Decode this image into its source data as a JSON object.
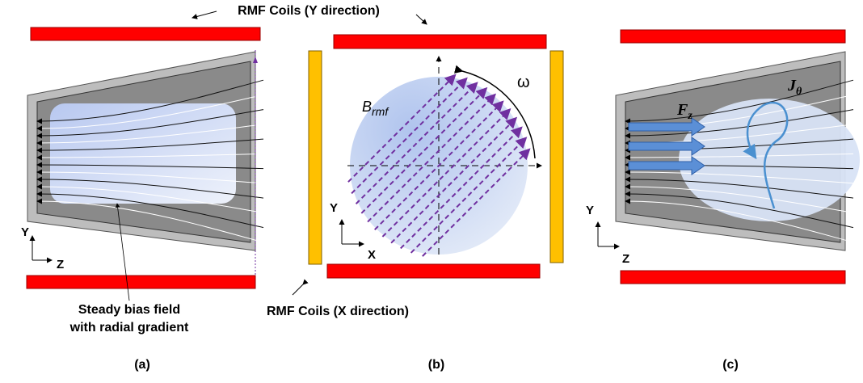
{
  "labels": {
    "coils_y": "RMF Coils (Y direction)",
    "coils_x": "RMF Coils (X direction)",
    "bias_field": [
      "Steady bias field",
      "with radial gradient"
    ]
  },
  "panels": [
    {
      "caption": "(a)",
      "axes": [
        "Y",
        "Z"
      ]
    },
    {
      "caption": "(b)",
      "axes": [
        "Y",
        "X"
      ],
      "field": "B",
      "field_sub": "rmf",
      "rotation": "ω"
    },
    {
      "caption": "(c)",
      "axes": [
        "Y",
        "Z"
      ],
      "force": "F",
      "force_sub": "z",
      "current": "J",
      "current_sub": "θ"
    }
  ]
}
